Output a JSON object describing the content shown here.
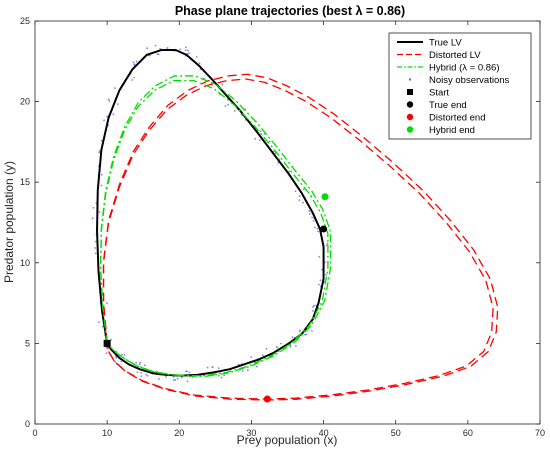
{
  "chart_data": {
    "type": "line",
    "title": "Phase plane trajectories (best λ = 0.86)",
    "xlabel": "Prey population (x)",
    "ylabel": "Predator population (y)",
    "xlim": [
      0,
      70
    ],
    "ylim": [
      0,
      25
    ],
    "xticks": [
      0,
      10,
      20,
      30,
      40,
      50,
      60,
      70
    ],
    "yticks": [
      0,
      5,
      10,
      15,
      20,
      25
    ],
    "grid": false,
    "legend_position": "top-right",
    "series": [
      {
        "name": "True LV",
        "color": "#000000",
        "style": "solid",
        "x": [
          10,
          9.3,
          8.8,
          8.6,
          8.7,
          9.2,
          10.2,
          11.7,
          13.5,
          15.5,
          17.5,
          19.5,
          21.0,
          22.8,
          24.5,
          26.5,
          28.5,
          30.8,
          33.0,
          35.2,
          37.0,
          38.5,
          39.5,
          40.0,
          40.0,
          39.3,
          38.5,
          37.0,
          35.2,
          33.0,
          31.0,
          29.0,
          27.0,
          24.8,
          22.5,
          20.3,
          18.2,
          16.3,
          14.5,
          13.0,
          11.7,
          10.6,
          10.0
        ],
        "y": [
          5.0,
          7.0,
          9.5,
          12.0,
          14.5,
          17.0,
          19.0,
          20.7,
          22.0,
          22.9,
          23.2,
          23.2,
          22.9,
          22.2,
          21.4,
          20.4,
          19.4,
          18.1,
          16.8,
          15.5,
          14.3,
          13.1,
          12.1,
          11.0,
          9.0,
          7.5,
          6.5,
          5.6,
          5.0,
          4.4,
          4.0,
          3.7,
          3.4,
          3.2,
          3.05,
          3.0,
          3.05,
          3.15,
          3.4,
          3.7,
          4.1,
          4.6,
          5.0
        ]
      },
      {
        "name": "Distorted LV",
        "color": "#ff0000",
        "style": "dashed",
        "x": [
          10,
          9.5,
          9.5,
          10.2,
          11.7,
          13.6,
          15.8,
          18.3,
          21.0,
          23.8,
          26.6,
          29.2,
          31.8,
          34.6,
          37.6,
          41.0,
          45.0,
          49.2,
          53.3,
          57.0,
          60.2,
          62.5,
          63.5,
          63.3,
          62.2,
          59.8,
          56.0,
          51.0,
          46.0,
          41.0,
          36.0,
          32.0,
          27.0,
          22.0,
          18.0,
          14.8,
          12.5,
          11.0,
          10.2,
          10.0
        ],
        "y": [
          5.0,
          7.5,
          10.0,
          12.5,
          14.7,
          16.7,
          18.2,
          19.5,
          20.4,
          21.0,
          21.3,
          21.4,
          21.2,
          20.7,
          20.0,
          19.0,
          17.6,
          16.0,
          14.3,
          12.5,
          10.7,
          8.9,
          7.2,
          5.7,
          4.5,
          3.6,
          3.0,
          2.5,
          2.1,
          1.8,
          1.6,
          1.55,
          1.6,
          1.8,
          2.2,
          2.7,
          3.3,
          3.9,
          4.5,
          5.0
        ]
      },
      {
        "name": "Hybrid (λ = 0.86)",
        "color": "#00dd00",
        "style": "dashdot",
        "x": [
          10,
          9.4,
          9.1,
          9.2,
          9.8,
          10.9,
          12.4,
          14.3,
          16.6,
          19.2,
          22.0,
          24.8,
          27.6,
          30.4,
          33.2,
          35.8,
          38.0,
          39.6,
          40.6,
          40.6,
          39.8,
          38.0,
          35.5,
          32.6,
          29.6,
          26.6,
          23.6,
          20.8,
          18.3,
          16.1,
          14.2,
          12.6,
          11.3,
          10.4,
          10.0
        ],
        "y": [
          5.0,
          7.2,
          9.6,
          12.0,
          14.3,
          16.4,
          18.2,
          19.7,
          20.7,
          21.3,
          21.3,
          20.8,
          19.8,
          18.5,
          17.0,
          15.5,
          14.3,
          13.1,
          11.8,
          9.6,
          7.6,
          6.1,
          5.0,
          4.2,
          3.6,
          3.2,
          3.0,
          3.0,
          3.1,
          3.3,
          3.6,
          4.0,
          4.4,
          4.8,
          5.0
        ]
      }
    ],
    "noisy_observations": {
      "name": "Noisy observations",
      "color": "#6f6fdf"
    },
    "markers": [
      {
        "name": "Start",
        "x": 10.0,
        "y": 5.0,
        "color": "#000000",
        "shape": "square"
      },
      {
        "name": "True end",
        "x": 40.0,
        "y": 12.1,
        "color": "#000000",
        "shape": "circle"
      },
      {
        "name": "Distorted end",
        "x": 32.2,
        "y": 1.55,
        "color": "#ff0000",
        "shape": "circle"
      },
      {
        "name": "Hybrid end",
        "x": 40.2,
        "y": 14.1,
        "color": "#00dd00",
        "shape": "circle"
      }
    ]
  }
}
